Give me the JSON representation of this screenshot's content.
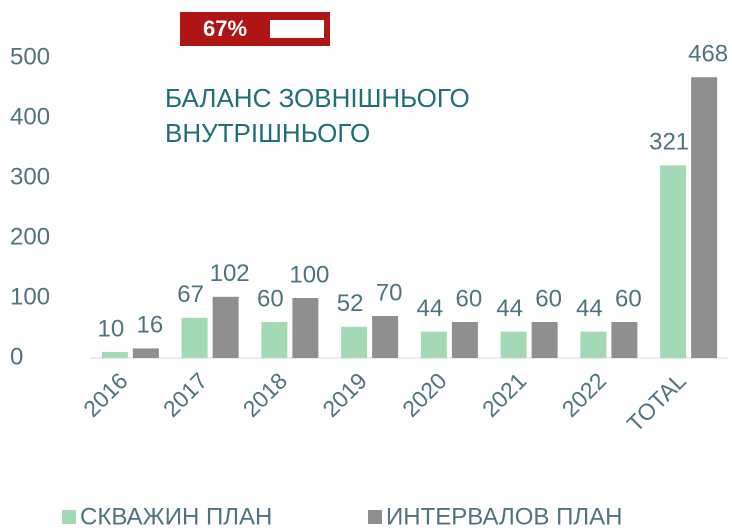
{
  "chart_data": {
    "type": "bar",
    "badge": "67%",
    "annotation": [
      "БАЛАНС ЗОВНІШНЬОГО",
      "ВНУТРІШНЬОГО"
    ],
    "categories": [
      "2016",
      "2017",
      "2018",
      "2019",
      "2020",
      "2021",
      "2022",
      "TOTAL"
    ],
    "series": [
      {
        "name": "СКВАЖИН ПЛАН",
        "color": "#a3d9b4",
        "values": [
          10,
          67,
          60,
          52,
          44,
          44,
          44,
          321
        ]
      },
      {
        "name": "ИНТЕРВАЛОВ ПЛАН",
        "color": "#8f8f8f",
        "values": [
          16,
          102,
          100,
          70,
          60,
          60,
          60,
          468
        ]
      }
    ],
    "ylim": [
      0,
      500
    ],
    "yticks": [
      0,
      100,
      200,
      300,
      400,
      500
    ],
    "grid": false,
    "legend": "bottom"
  }
}
